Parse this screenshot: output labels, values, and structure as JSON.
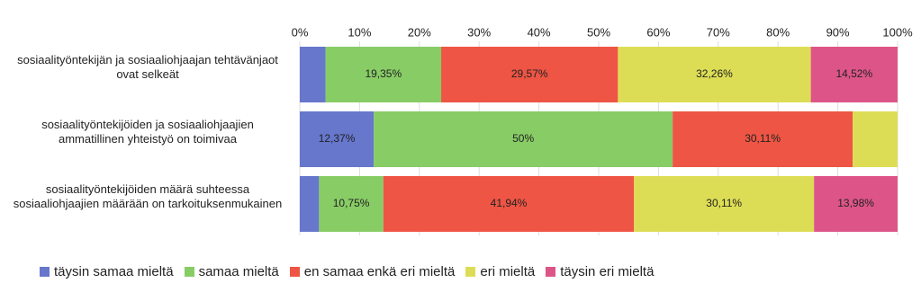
{
  "chart_data": {
    "type": "stacked-bar-horizontal",
    "categories": [
      "sosiaalityöntekijän ja sosiaaliohjaajan tehtävänjaot ovat selkeät",
      "sosiaalityöntekijöiden ja sosiaaliohjaajien ammatillinen yhteistyö on toimivaa",
      "sosiaalityöntekijöiden määrä suhteessa sosiaaliohjaajien määrään on tarkoituksenmukainen"
    ],
    "series": [
      {
        "name": "täysin samaa mieltä",
        "color": "#6677cc",
        "values": [
          4.3,
          12.37,
          3.22
        ],
        "value_labels": [
          null,
          "12,37%",
          null
        ]
      },
      {
        "name": "samaa mieltä",
        "color": "#88cc66",
        "values": [
          19.35,
          50,
          10.75
        ],
        "value_labels": [
          "19,35%",
          "50%",
          "10,75%"
        ]
      },
      {
        "name": "en samaa enkä eri mieltä",
        "color": "#ee5544",
        "values": [
          29.57,
          30.11,
          41.94
        ],
        "value_labels": [
          "29,57%",
          "30,11%",
          "41,94%"
        ]
      },
      {
        "name": "eri mieltä",
        "color": "#dddd55",
        "values": [
          32.26,
          7.52,
          30.11
        ],
        "value_labels": [
          "32,26%",
          null,
          "30,11%"
        ]
      },
      {
        "name": "täysin eri mieltä",
        "color": "#dd5588",
        "values": [
          14.52,
          0,
          13.98
        ],
        "value_labels": [
          "14,52%",
          null,
          "13,98%"
        ]
      }
    ],
    "xlim": [
      0,
      100
    ],
    "xticks": [
      {
        "value": 0,
        "label": "0%"
      },
      {
        "value": 10,
        "label": "10%"
      },
      {
        "value": 20,
        "label": "20%"
      },
      {
        "value": 30,
        "label": "30%"
      },
      {
        "value": 40,
        "label": "40%"
      },
      {
        "value": 50,
        "label": "50%"
      },
      {
        "value": 60,
        "label": "60%"
      },
      {
        "value": 70,
        "label": "70%"
      },
      {
        "value": 80,
        "label": "80%"
      },
      {
        "value": 90,
        "label": "90%"
      },
      {
        "value": 100,
        "label": "100%"
      }
    ],
    "grid": true,
    "legend": "bottom"
  }
}
